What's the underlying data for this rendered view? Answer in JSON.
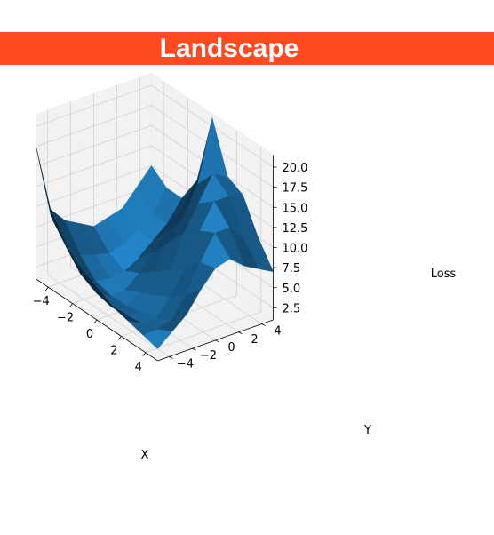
{
  "banner": {
    "title": "Landscape",
    "color": "#ff4a21"
  },
  "chart_data": {
    "type": "surface3d",
    "title": "Landscape",
    "xlabel": "X",
    "ylabel": "Y",
    "zlabel": "Loss",
    "xlim": [
      -5,
      5
    ],
    "ylim": [
      -5,
      5
    ],
    "zlim": [
      1.0,
      21.5
    ],
    "x_ticks": [
      "−4",
      "−2",
      "0",
      "2",
      "4"
    ],
    "y_ticks": [
      "−4",
      "−2",
      "0",
      "2",
      "4"
    ],
    "z_ticks": [
      "2.5",
      "5.0",
      "7.5",
      "10.0",
      "12.5",
      "15.0",
      "17.5",
      "20.0"
    ],
    "x": [
      -5,
      -3.75,
      -2.5,
      -1.25,
      0,
      1.25,
      2.5,
      3.75,
      5
    ],
    "y": [
      -5,
      -3.75,
      -2.5,
      -1.25,
      0,
      1.25,
      2.5,
      3.75,
      5
    ],
    "z": [
      [
        17.5,
        10.0,
        7.5,
        6.0,
        5.0,
        4.0,
        3.5,
        3.0,
        2.5
      ],
      [
        9.0,
        6.0,
        3.5,
        2.5,
        2.0,
        2.2,
        2.5,
        3.0,
        4.0
      ],
      [
        7.0,
        4.0,
        2.0,
        1.5,
        1.5,
        2.0,
        2.5,
        3.5,
        5.5
      ],
      [
        6.0,
        3.5,
        1.8,
        1.5,
        2.5,
        3.5,
        4.5,
        6.0,
        8.0
      ],
      [
        5.0,
        3.0,
        2.0,
        3.0,
        4.5,
        6.0,
        7.5,
        9.5,
        10.0
      ],
      [
        5.5,
        3.5,
        3.0,
        5.0,
        7.5,
        10.0,
        11.5,
        12.5,
        10.5
      ],
      [
        6.0,
        4.5,
        4.5,
        7.0,
        10.0,
        13.0,
        14.5,
        12.5,
        9.0
      ],
      [
        8.0,
        6.0,
        6.0,
        9.0,
        13.5,
        16.0,
        14.5,
        10.5,
        8.0
      ],
      [
        10.0,
        8.5,
        8.5,
        12.0,
        21.0,
        15.0,
        14.0,
        10.0,
        7.0
      ]
    ],
    "surface_color": "#1f77b4",
    "grid": true,
    "pane_color": "#f2f2f2"
  }
}
